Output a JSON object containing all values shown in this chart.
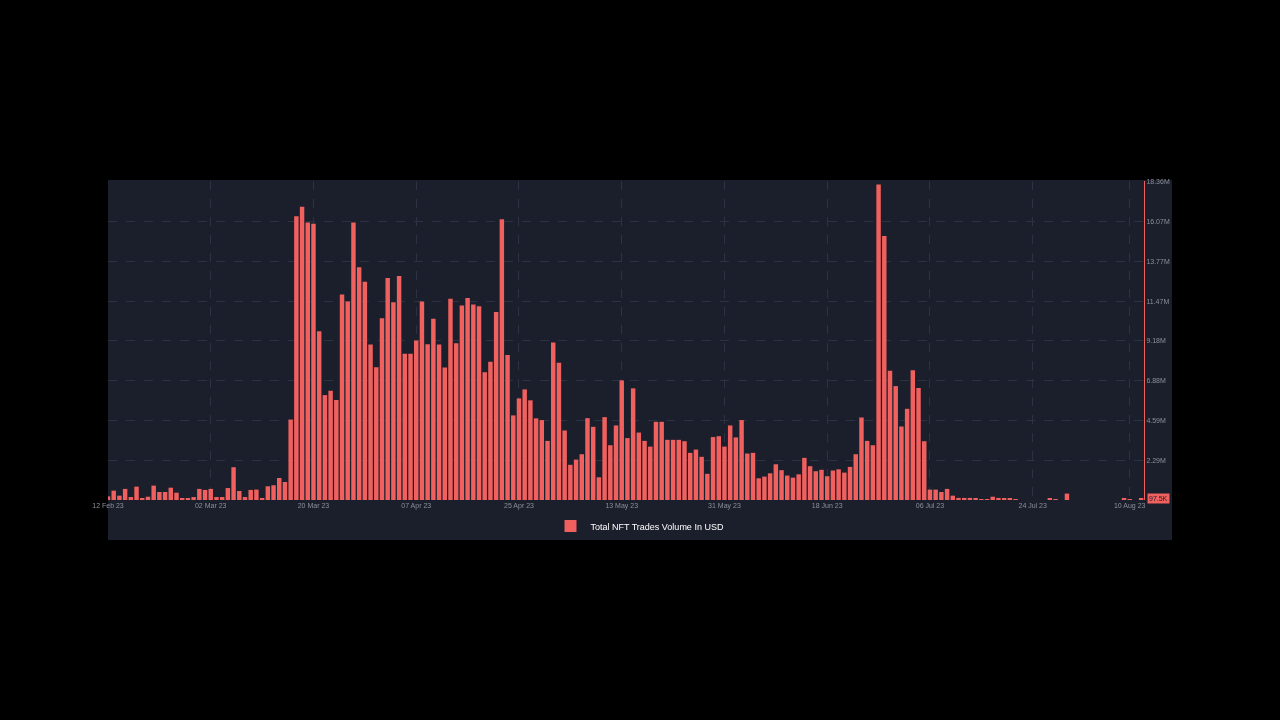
{
  "chart_data": {
    "type": "bar",
    "x": [
      "2023-02-12",
      "2023-02-13",
      "2023-02-14",
      "2023-02-15",
      "2023-02-16",
      "2023-02-17",
      "2023-02-18",
      "2023-02-19",
      "2023-02-20",
      "2023-02-21",
      "2023-02-22",
      "2023-02-23",
      "2023-02-24",
      "2023-02-25",
      "2023-02-26",
      "2023-02-27",
      "2023-02-28",
      "2023-03-01",
      "2023-03-02",
      "2023-03-03",
      "2023-03-04",
      "2023-03-05",
      "2023-03-06",
      "2023-03-07",
      "2023-03-08",
      "2023-03-09",
      "2023-03-10",
      "2023-03-11",
      "2023-03-12",
      "2023-03-13",
      "2023-03-14",
      "2023-03-15",
      "2023-03-16",
      "2023-03-17",
      "2023-03-18",
      "2023-03-19",
      "2023-03-20",
      "2023-03-21",
      "2023-03-22",
      "2023-03-23",
      "2023-03-24",
      "2023-03-25",
      "2023-03-26",
      "2023-03-27",
      "2023-03-28",
      "2023-03-29",
      "2023-03-30",
      "2023-03-31",
      "2023-04-01",
      "2023-04-02",
      "2023-04-03",
      "2023-04-04",
      "2023-04-05",
      "2023-04-06",
      "2023-04-07",
      "2023-04-08",
      "2023-04-09",
      "2023-04-10",
      "2023-04-11",
      "2023-04-12",
      "2023-04-13",
      "2023-04-14",
      "2023-04-15",
      "2023-04-16",
      "2023-04-17",
      "2023-04-18",
      "2023-04-19",
      "2023-04-20",
      "2023-04-21",
      "2023-04-22",
      "2023-04-23",
      "2023-04-24",
      "2023-04-25",
      "2023-04-26",
      "2023-04-27",
      "2023-04-28",
      "2023-04-29",
      "2023-04-30",
      "2023-05-01",
      "2023-05-02",
      "2023-05-03",
      "2023-05-04",
      "2023-05-05",
      "2023-05-06",
      "2023-05-07",
      "2023-05-08",
      "2023-05-09",
      "2023-05-10",
      "2023-05-11",
      "2023-05-12",
      "2023-05-13",
      "2023-05-14",
      "2023-05-15",
      "2023-05-16",
      "2023-05-17",
      "2023-05-18",
      "2023-05-19",
      "2023-05-20",
      "2023-05-21",
      "2023-05-22",
      "2023-05-23",
      "2023-05-24",
      "2023-05-25",
      "2023-05-26",
      "2023-05-27",
      "2023-05-28",
      "2023-05-29",
      "2023-05-30",
      "2023-05-31",
      "2023-06-01",
      "2023-06-02",
      "2023-06-03",
      "2023-06-04",
      "2023-06-05",
      "2023-06-06",
      "2023-06-07",
      "2023-06-08",
      "2023-06-09",
      "2023-06-10",
      "2023-06-11",
      "2023-06-12",
      "2023-06-13",
      "2023-06-14",
      "2023-06-15",
      "2023-06-16",
      "2023-06-17",
      "2023-06-18",
      "2023-06-19",
      "2023-06-20",
      "2023-06-21",
      "2023-06-22",
      "2023-06-23",
      "2023-06-24",
      "2023-06-25",
      "2023-06-26",
      "2023-06-27",
      "2023-06-28",
      "2023-06-29",
      "2023-06-30",
      "2023-07-01",
      "2023-07-02",
      "2023-07-03",
      "2023-07-04",
      "2023-07-05",
      "2023-07-06",
      "2023-07-07",
      "2023-07-08",
      "2023-07-09",
      "2023-07-10",
      "2023-07-11",
      "2023-07-12",
      "2023-07-13",
      "2023-07-14",
      "2023-07-15",
      "2023-07-16",
      "2023-07-17",
      "2023-07-18",
      "2023-07-19",
      "2023-07-20",
      "2023-07-21",
      "2023-07-22",
      "2023-07-23",
      "2023-07-24",
      "2023-07-25",
      "2023-07-26",
      "2023-07-27",
      "2023-07-28",
      "2023-07-29",
      "2023-07-30",
      "2023-07-31",
      "2023-08-01",
      "2023-08-02",
      "2023-08-03",
      "2023-08-04",
      "2023-08-05",
      "2023-08-06",
      "2023-08-07",
      "2023-08-08",
      "2023-08-09",
      "2023-08-10",
      "2023-08-11",
      "2023-08-12"
    ],
    "series": [
      {
        "name": "Total NFT Trades Volume In USD",
        "color": "#f0605e",
        "values": [
          0.21,
          0.54,
          0.25,
          0.64,
          0.17,
          0.77,
          0.08,
          0.19,
          0.83,
          0.46,
          0.46,
          0.71,
          0.42,
          0.06,
          0.06,
          0.17,
          0.64,
          0.58,
          0.64,
          0.17,
          0.17,
          0.69,
          1.89,
          0.52,
          0.17,
          0.58,
          0.6,
          0.08,
          0.79,
          0.85,
          1.27,
          1.04,
          4.64,
          16.37,
          16.91,
          16.0,
          15.93,
          9.74,
          6.05,
          6.3,
          5.77,
          11.86,
          11.45,
          16.0,
          13.42,
          12.59,
          8.97,
          7.66,
          10.49,
          12.8,
          11.41,
          12.92,
          8.43,
          8.43,
          9.2,
          11.45,
          8.98,
          10.45,
          8.97,
          7.64,
          11.61,
          9.04,
          11.22,
          11.65,
          11.28,
          11.18,
          7.37,
          7.98,
          10.84,
          16.2,
          8.37,
          4.88,
          5.86,
          6.38,
          5.75,
          4.71,
          4.61,
          3.41,
          9.08,
          7.91,
          4.01,
          2.03,
          2.33,
          2.64,
          4.72,
          4.22,
          1.31,
          4.78,
          3.16,
          4.3,
          6.9,
          3.57,
          6.44,
          3.89,
          3.41,
          3.08,
          4.51,
          4.51,
          3.47,
          3.47,
          3.47,
          3.39,
          2.72,
          2.91,
          2.49,
          1.51,
          3.63,
          3.68,
          3.08,
          4.3,
          3.61,
          4.61,
          2.68,
          2.72,
          1.25,
          1.35,
          1.54,
          2.06,
          1.72,
          1.41,
          1.29,
          1.48,
          2.43,
          1.95,
          1.66,
          1.74,
          1.37,
          1.7,
          1.77,
          1.58,
          1.91,
          2.64,
          4.76,
          3.41,
          3.16,
          18.2,
          15.23,
          7.46,
          6.57,
          4.24,
          5.26,
          7.48,
          6.46,
          3.39,
          0.6,
          0.6,
          0.46,
          0.64,
          0.25,
          0.12,
          0.12,
          0.12,
          0.06,
          0.02,
          0.02,
          0.19,
          0.12,
          0.06,
          0.06,
          0.02,
          0,
          0,
          0,
          0,
          0,
          0.1,
          0.05,
          0,
          0.37,
          0,
          0,
          0,
          0,
          0,
          0,
          0,
          0,
          0,
          0.1,
          0.05,
          0,
          0.0975
        ]
      }
    ],
    "xlim": [
      "2023-02-12",
      "2023-08-12T12:00"
    ],
    "xticks": [
      {
        "value": "2023-02-12",
        "label": "12 Feb 23"
      },
      {
        "value": "2023-03-02",
        "label": "02 Mar 23"
      },
      {
        "value": "2023-03-20",
        "label": "20 Mar 23"
      },
      {
        "value": "2023-04-07",
        "label": "07 Apr 23"
      },
      {
        "value": "2023-04-25",
        "label": "25 Apr 23"
      },
      {
        "value": "2023-05-13",
        "label": "13 May 23"
      },
      {
        "value": "2023-05-31",
        "label": "31 May 23"
      },
      {
        "value": "2023-06-18",
        "label": "18 Jun 23"
      },
      {
        "value": "2023-07-06",
        "label": "06 Jul 23"
      },
      {
        "value": "2023-07-24",
        "label": "24 Jul 23"
      },
      {
        "value": "2023-08-10",
        "label": "10 Aug 23"
      }
    ],
    "ylim": [
      0,
      18.4
    ],
    "yticks": [
      {
        "value": 2.295,
        "label": "2.29M"
      },
      {
        "value": 4.59,
        "label": "4.59M"
      },
      {
        "value": 6.885,
        "label": "6.88M"
      },
      {
        "value": 9.18,
        "label": "9.18M"
      },
      {
        "value": 11.475,
        "label": "11.47M"
      },
      {
        "value": 13.77,
        "label": "13.77M"
      },
      {
        "value": 16.065,
        "label": "16.07M"
      },
      {
        "value": 18.36,
        "label": "18.36M"
      }
    ],
    "annotations": [
      {
        "text": "97.5K",
        "x": "2023-08-12",
        "y": 0.0975
      }
    ],
    "grid": true,
    "legend": "bottom"
  }
}
